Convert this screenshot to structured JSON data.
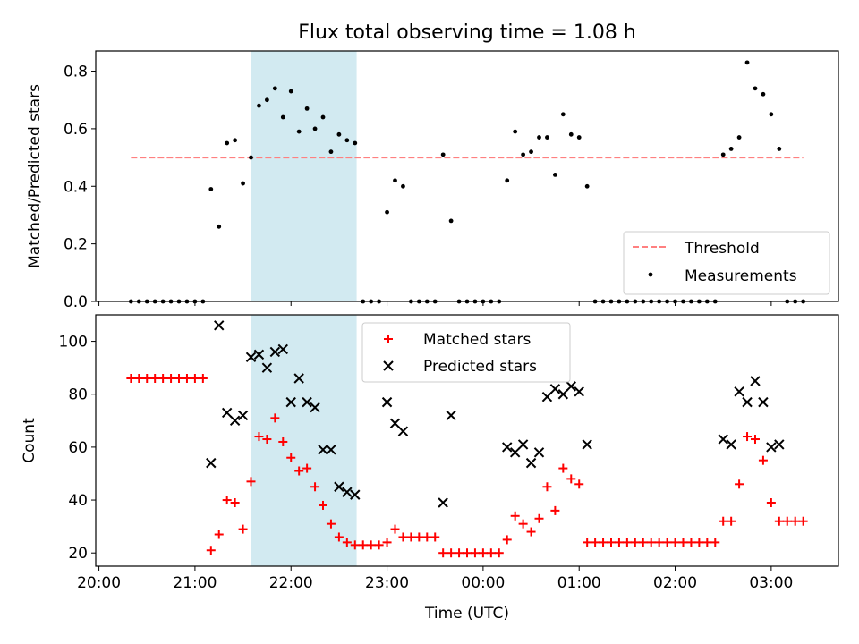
{
  "title": "Flux total observing time = 1.08 h",
  "colors": {
    "threshold": "#ff8080",
    "measurement": "#000000",
    "matched": "#ff0000",
    "predicted": "#000000",
    "shade": "#add8e6"
  },
  "chart_data": [
    {
      "type": "scatter",
      "title": "Flux total observing time = 1.08 h",
      "ylabel": "Matched/Predicted stars",
      "xlabel": "",
      "x_unit": "hours after 20:00 UTC",
      "xlim": [
        "19:58",
        "03:42"
      ],
      "ylim": [
        0,
        0.87
      ],
      "yticks": [
        "0.0",
        "0.2",
        "0.4",
        "0.6",
        "0.8"
      ],
      "shaded_interval": [
        "21:35",
        "22:41"
      ],
      "legend_position": "lower right",
      "series": [
        {
          "name": "Threshold",
          "kind": "dashed-line",
          "points": [
            [
              "20:20",
              0.5
            ],
            [
              "03:20",
              0.5
            ]
          ]
        },
        {
          "name": "Measurements",
          "kind": "dots",
          "points": [
            [
              "20:20",
              0
            ],
            [
              "20:25",
              0
            ],
            [
              "20:30",
              0
            ],
            [
              "20:35",
              0
            ],
            [
              "20:40",
              0
            ],
            [
              "20:45",
              0
            ],
            [
              "20:50",
              0
            ],
            [
              "20:55",
              0
            ],
            [
              "21:00",
              0
            ],
            [
              "21:05",
              0
            ],
            [
              "21:10",
              0.39
            ],
            [
              "21:15",
              0.26
            ],
            [
              "21:20",
              0.55
            ],
            [
              "21:25",
              0.56
            ],
            [
              "21:30",
              0.41
            ],
            [
              "21:35",
              0.5
            ],
            [
              "21:40",
              0.68
            ],
            [
              "21:45",
              0.7
            ],
            [
              "21:50",
              0.74
            ],
            [
              "21:55",
              0.64
            ],
            [
              "22:00",
              0.73
            ],
            [
              "22:05",
              0.59
            ],
            [
              "22:10",
              0.67
            ],
            [
              "22:15",
              0.6
            ],
            [
              "22:20",
              0.64
            ],
            [
              "22:25",
              0.52
            ],
            [
              "22:30",
              0.58
            ],
            [
              "22:35",
              0.56
            ],
            [
              "22:40",
              0.55
            ],
            [
              "22:45",
              0
            ],
            [
              "22:50",
              0
            ],
            [
              "22:55",
              0
            ],
            [
              "23:00",
              0.31
            ],
            [
              "23:05",
              0.42
            ],
            [
              "23:10",
              0.4
            ],
            [
              "23:15",
              0
            ],
            [
              "23:20",
              0
            ],
            [
              "23:25",
              0
            ],
            [
              "23:30",
              0
            ],
            [
              "23:35",
              0.51
            ],
            [
              "23:40",
              0.28
            ],
            [
              "23:45",
              0
            ],
            [
              "23:50",
              0
            ],
            [
              "23:55",
              0
            ],
            [
              "00:00",
              0
            ],
            [
              "00:05",
              0
            ],
            [
              "00:10",
              0
            ],
            [
              "00:15",
              0.42
            ],
            [
              "00:20",
              0.59
            ],
            [
              "00:25",
              0.51
            ],
            [
              "00:30",
              0.52
            ],
            [
              "00:35",
              0.57
            ],
            [
              "00:40",
              0.57
            ],
            [
              "00:45",
              0.44
            ],
            [
              "00:50",
              0.65
            ],
            [
              "00:55",
              0.58
            ],
            [
              "01:00",
              0.57
            ],
            [
              "01:05",
              0.4
            ],
            [
              "01:10",
              0
            ],
            [
              "01:15",
              0
            ],
            [
              "01:20",
              0
            ],
            [
              "01:25",
              0
            ],
            [
              "01:30",
              0
            ],
            [
              "01:35",
              0
            ],
            [
              "01:40",
              0
            ],
            [
              "01:45",
              0
            ],
            [
              "01:50",
              0
            ],
            [
              "01:55",
              0
            ],
            [
              "02:00",
              0
            ],
            [
              "02:05",
              0
            ],
            [
              "02:10",
              0
            ],
            [
              "02:15",
              0
            ],
            [
              "02:20",
              0
            ],
            [
              "02:25",
              0
            ],
            [
              "02:30",
              0.51
            ],
            [
              "02:35",
              0.53
            ],
            [
              "02:40",
              0.57
            ],
            [
              "02:45",
              0.83
            ],
            [
              "02:50",
              0.74
            ],
            [
              "02:55",
              0.72
            ],
            [
              "03:00",
              0.65
            ],
            [
              "03:05",
              0.53
            ],
            [
              "03:10",
              0
            ],
            [
              "03:15",
              0
            ],
            [
              "03:20",
              0
            ]
          ]
        }
      ]
    },
    {
      "type": "scatter",
      "title": "",
      "ylabel": "Count",
      "xlabel": "Time (UTC)",
      "xlim": [
        "19:58",
        "03:42"
      ],
      "ylim": [
        15,
        110
      ],
      "yticks": [
        "20",
        "40",
        "60",
        "80",
        "100"
      ],
      "xticks": [
        "20:00",
        "21:00",
        "22:00",
        "23:00",
        "00:00",
        "01:00",
        "02:00",
        "03:00"
      ],
      "shaded_interval": [
        "21:35",
        "22:41"
      ],
      "legend_position": "upper center",
      "series": [
        {
          "name": "Matched stars",
          "marker": "plus",
          "points": [
            [
              "20:20",
              86
            ],
            [
              "20:25",
              86
            ],
            [
              "20:30",
              86
            ],
            [
              "20:35",
              86
            ],
            [
              "20:40",
              86
            ],
            [
              "20:45",
              86
            ],
            [
              "20:50",
              86
            ],
            [
              "20:55",
              86
            ],
            [
              "21:00",
              86
            ],
            [
              "21:05",
              86
            ],
            [
              "21:10",
              21
            ],
            [
              "21:15",
              27
            ],
            [
              "21:20",
              40
            ],
            [
              "21:25",
              39
            ],
            [
              "21:30",
              29
            ],
            [
              "21:35",
              47
            ],
            [
              "21:40",
              64
            ],
            [
              "21:45",
              63
            ],
            [
              "21:50",
              71
            ],
            [
              "21:55",
              62
            ],
            [
              "22:00",
              56
            ],
            [
              "22:05",
              51
            ],
            [
              "22:10",
              52
            ],
            [
              "22:15",
              45
            ],
            [
              "22:20",
              38
            ],
            [
              "22:25",
              31
            ],
            [
              "22:30",
              26
            ],
            [
              "22:35",
              24
            ],
            [
              "22:40",
              23
            ],
            [
              "22:45",
              23
            ],
            [
              "22:50",
              23
            ],
            [
              "22:55",
              23
            ],
            [
              "23:00",
              24
            ],
            [
              "23:05",
              29
            ],
            [
              "23:10",
              26
            ],
            [
              "23:15",
              26
            ],
            [
              "23:20",
              26
            ],
            [
              "23:25",
              26
            ],
            [
              "23:30",
              26
            ],
            [
              "23:35",
              20
            ],
            [
              "23:40",
              20
            ],
            [
              "23:45",
              20
            ],
            [
              "23:50",
              20
            ],
            [
              "23:55",
              20
            ],
            [
              "00:00",
              20
            ],
            [
              "00:05",
              20
            ],
            [
              "00:10",
              20
            ],
            [
              "00:15",
              25
            ],
            [
              "00:20",
              34
            ],
            [
              "00:25",
              31
            ],
            [
              "00:30",
              28
            ],
            [
              "00:35",
              33
            ],
            [
              "00:40",
              45
            ],
            [
              "00:45",
              36
            ],
            [
              "00:50",
              52
            ],
            [
              "00:55",
              48
            ],
            [
              "01:00",
              46
            ],
            [
              "01:05",
              24
            ],
            [
              "01:10",
              24
            ],
            [
              "01:15",
              24
            ],
            [
              "01:20",
              24
            ],
            [
              "01:25",
              24
            ],
            [
              "01:30",
              24
            ],
            [
              "01:35",
              24
            ],
            [
              "01:40",
              24
            ],
            [
              "01:45",
              24
            ],
            [
              "01:50",
              24
            ],
            [
              "01:55",
              24
            ],
            [
              "02:00",
              24
            ],
            [
              "02:05",
              24
            ],
            [
              "02:10",
              24
            ],
            [
              "02:15",
              24
            ],
            [
              "02:20",
              24
            ],
            [
              "02:25",
              24
            ],
            [
              "02:30",
              32
            ],
            [
              "02:35",
              32
            ],
            [
              "02:40",
              46
            ],
            [
              "02:45",
              64
            ],
            [
              "02:50",
              63
            ],
            [
              "02:55",
              55
            ],
            [
              "03:00",
              39
            ],
            [
              "03:05",
              32
            ],
            [
              "03:10",
              32
            ],
            [
              "03:15",
              32
            ],
            [
              "03:20",
              32
            ]
          ]
        },
        {
          "name": "Predicted stars",
          "marker": "x",
          "points": [
            [
              "21:10",
              54
            ],
            [
              "21:15",
              106
            ],
            [
              "21:20",
              73
            ],
            [
              "21:25",
              70
            ],
            [
              "21:30",
              72
            ],
            [
              "21:35",
              94
            ],
            [
              "21:40",
              95
            ],
            [
              "21:45",
              90
            ],
            [
              "21:50",
              96
            ],
            [
              "21:55",
              97
            ],
            [
              "22:00",
              77
            ],
            [
              "22:05",
              86
            ],
            [
              "22:10",
              77
            ],
            [
              "22:15",
              75
            ],
            [
              "22:20",
              59
            ],
            [
              "22:25",
              59
            ],
            [
              "22:30",
              45
            ],
            [
              "22:35",
              43
            ],
            [
              "22:40",
              42
            ],
            [
              "23:00",
              77
            ],
            [
              "23:05",
              69
            ],
            [
              "23:10",
              66
            ],
            [
              "23:35",
              39
            ],
            [
              "23:40",
              72
            ],
            [
              "00:15",
              60
            ],
            [
              "00:20",
              58
            ],
            [
              "00:25",
              61
            ],
            [
              "00:30",
              54
            ],
            [
              "00:35",
              58
            ],
            [
              "00:40",
              79
            ],
            [
              "00:45",
              82
            ],
            [
              "00:50",
              80
            ],
            [
              "00:55",
              83
            ],
            [
              "01:00",
              81
            ],
            [
              "01:05",
              61
            ],
            [
              "02:30",
              63
            ],
            [
              "02:35",
              61
            ],
            [
              "02:40",
              81
            ],
            [
              "02:45",
              77
            ],
            [
              "02:50",
              85
            ],
            [
              "02:55",
              77
            ],
            [
              "03:00",
              60
            ],
            [
              "03:05",
              61
            ]
          ]
        }
      ]
    }
  ]
}
